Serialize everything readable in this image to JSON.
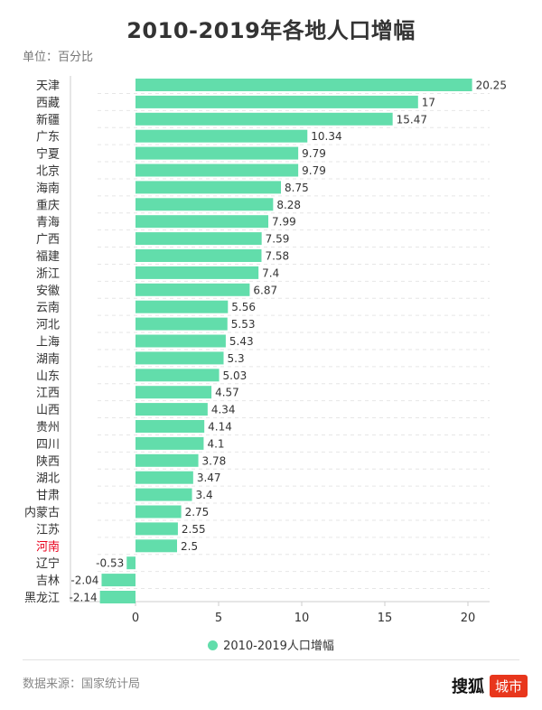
{
  "title": "2010-2019年各地人口增幅",
  "unit_label": "单位：百分比",
  "legend_label": "2010-2019人口增幅",
  "source": "数据来源：国家统计局",
  "brand": {
    "name": "搜狐",
    "tag": "城市"
  },
  "colors": {
    "bar": "#62ddab",
    "highlight_label": "#e8001c",
    "brand_tag": "#e8361c",
    "axis": "#cccccc",
    "grid": "#e6e6e6"
  },
  "chart_data": {
    "type": "bar",
    "orientation": "horizontal",
    "title": "2010-2019年各地人口增幅",
    "xlabel": "",
    "ylabel": "单位：百分比",
    "xlim": [
      -3,
      21
    ],
    "ticks": [
      0,
      5,
      10,
      15,
      20
    ],
    "highlight": "河南",
    "legend_position": "bottom",
    "series": [
      {
        "name": "2010-2019人口增幅"
      }
    ],
    "categories": [
      "天津",
      "西藏",
      "新疆",
      "广东",
      "宁夏",
      "北京",
      "海南",
      "重庆",
      "青海",
      "广西",
      "福建",
      "浙江",
      "安徽",
      "云南",
      "河北",
      "上海",
      "湖南",
      "山东",
      "江西",
      "山西",
      "贵州",
      "四川",
      "陕西",
      "湖北",
      "甘肃",
      "内蒙古",
      "江苏",
      "河南",
      "辽宁",
      "吉林",
      "黑龙江"
    ],
    "values": [
      20.25,
      17,
      15.47,
      10.34,
      9.79,
      9.79,
      8.75,
      8.28,
      7.99,
      7.59,
      7.58,
      7.4,
      6.87,
      5.56,
      5.53,
      5.43,
      5.3,
      5.03,
      4.57,
      4.34,
      4.14,
      4.1,
      3.78,
      3.47,
      3.4,
      2.75,
      2.55,
      2.5,
      -0.53,
      -2.04,
      -2.14
    ]
  }
}
